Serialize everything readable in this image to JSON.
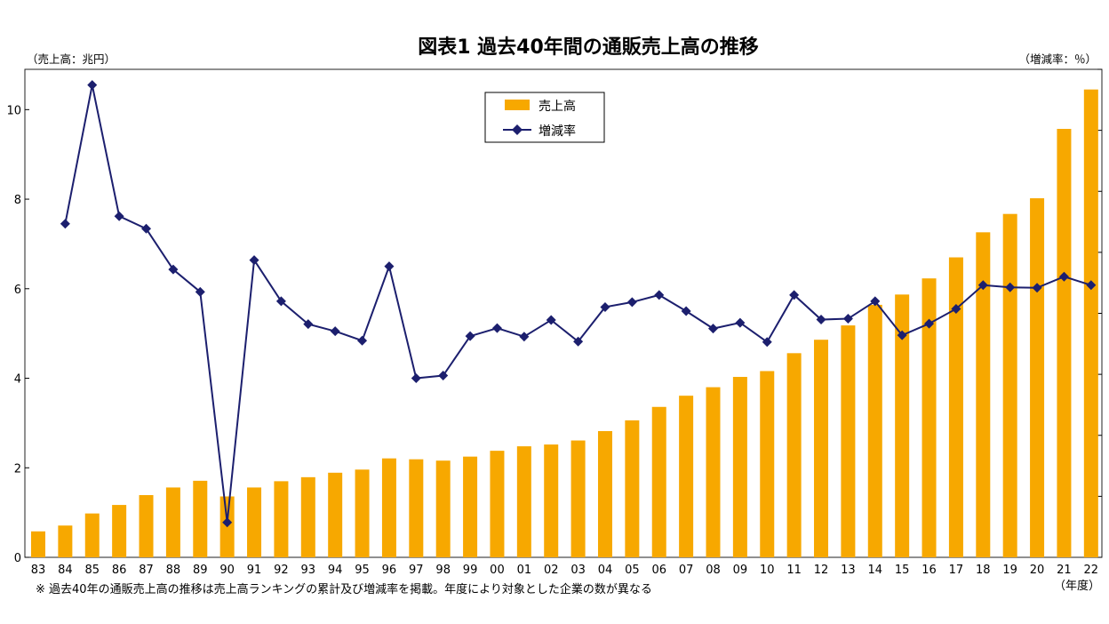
{
  "colors": {
    "bar": "#F7A800",
    "line": "#1C1F6E",
    "axis": "#000000",
    "frame": "#222222"
  },
  "header": {
    "title": "図表1 過去40年間の通販売上高の推移",
    "left_unit": "（売上高：兆円）",
    "right_unit": "（増減率：％）"
  },
  "footer": {
    "note": "※ 過去40年の通販売上高の推移は売上高ランキングの累計及び増減率を掲載。年度により対象とした企業の数が異なる",
    "year_unit": "（年度）"
  },
  "chart_data": {
    "type": "bar",
    "title": "図表1 過去40年間の通販売上高の推移",
    "categories": [
      "83",
      "84",
      "85",
      "86",
      "87",
      "88",
      "89",
      "90",
      "91",
      "92",
      "93",
      "94",
      "95",
      "96",
      "97",
      "98",
      "99",
      "00",
      "01",
      "02",
      "03",
      "04",
      "05",
      "06",
      "07",
      "08",
      "09",
      "10",
      "11",
      "12",
      "13",
      "14",
      "15",
      "16",
      "17",
      "18",
      "19",
      "20",
      "21",
      "22"
    ],
    "y_left": {
      "label": "（売上高：兆円）",
      "range": [
        0,
        10.9
      ],
      "ticks": [
        0,
        2,
        4,
        6,
        8,
        10
      ]
    },
    "y_right": {
      "label": "（増減率：％）",
      "ticks_labeled": false
    },
    "legend": {
      "position": "top-center",
      "entries": [
        "売上高",
        "増減率"
      ]
    },
    "grid": false,
    "series": [
      {
        "name": "売上高",
        "type": "bar",
        "axis": "left",
        "values": [
          0.58,
          0.71,
          0.98,
          1.17,
          1.39,
          1.56,
          1.71,
          1.36,
          1.56,
          1.7,
          1.79,
          1.89,
          1.96,
          2.21,
          2.19,
          2.16,
          2.25,
          2.38,
          2.48,
          2.52,
          2.61,
          2.82,
          3.06,
          3.36,
          3.61,
          3.8,
          4.03,
          4.16,
          4.56,
          4.86,
          5.18,
          5.64,
          5.87,
          6.23,
          6.7,
          7.26,
          7.67,
          8.02,
          9.57,
          10.45
        ]
      },
      {
        "name": "増減率",
        "type": "line",
        "axis": "right",
        "values_on_left_scale": [
          null,
          7.45,
          10.55,
          7.62,
          7.34,
          6.43,
          5.93,
          0.78,
          6.64,
          5.72,
          5.21,
          5.05,
          4.84,
          6.5,
          4.0,
          4.06,
          4.94,
          5.12,
          4.93,
          5.3,
          4.82,
          5.59,
          5.7,
          5.86,
          5.5,
          5.11,
          5.24,
          4.81,
          5.86,
          5.31,
          5.33,
          5.72,
          4.96,
          5.22,
          5.55,
          6.08,
          6.03,
          6.02,
          6.27,
          6.08
        ]
      }
    ]
  }
}
